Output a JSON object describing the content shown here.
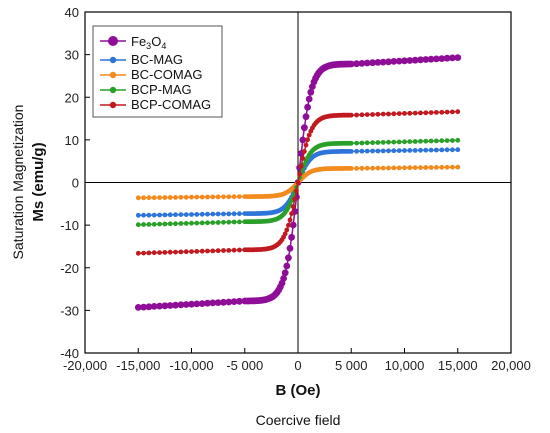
{
  "chart_data": {
    "type": "line",
    "xlabel": "B (Oe)",
    "ylabel": [
      "Saturation Magnetization",
      "Ms (emu/g)"
    ],
    "caption": "Coercive field",
    "xlim": [
      -20000,
      20000
    ],
    "ylim": [
      -40,
      40
    ],
    "x_ticks": [
      -20000,
      -15000,
      -10000,
      -5000,
      0,
      5000,
      10000,
      15000,
      20000
    ],
    "x_tick_labels": [
      "-20,000",
      "-15,000",
      "-10,000",
      "-5 000",
      "0",
      "5 000",
      "10,000",
      "15,000",
      "20,000"
    ],
    "y_ticks": [
      -40,
      -30,
      -20,
      -10,
      0,
      10,
      20,
      30,
      40
    ],
    "y_tick_labels": [
      "-40",
      "-30",
      "-20",
      "-10",
      "0",
      "10",
      "20",
      "30",
      "40"
    ],
    "legend_position": "top-left",
    "curve_sat_field": 1200,
    "series": [
      {
        "name": "Fe3O4",
        "name_base": "Fe",
        "name_sub1": "3",
        "name_mid": "O",
        "name_sub2": "4",
        "color": "#8e0e98",
        "sat_at_5000": 27.8,
        "sat_at_15000": 29.3,
        "big_marker": true
      },
      {
        "name": "BC-MAG",
        "color": "#2f74d8",
        "sat_at_5000": 7.3,
        "sat_at_15000": 7.7
      },
      {
        "name": "BC-COMAG",
        "color": "#f28a1e",
        "sat_at_5000": 3.3,
        "sat_at_15000": 3.6
      },
      {
        "name": "BCP-MAG",
        "color": "#2aa02a",
        "sat_at_5000": 9.2,
        "sat_at_15000": 9.9
      },
      {
        "name": "BCP-COMAG",
        "color": "#c01a20",
        "sat_at_5000": 15.8,
        "sat_at_15000": 16.6
      }
    ]
  }
}
